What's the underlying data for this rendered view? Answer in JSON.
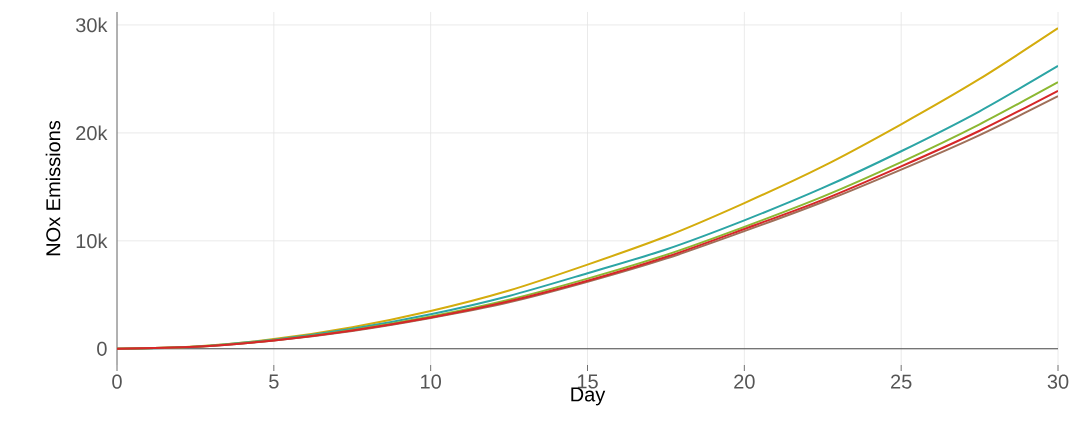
{
  "chart_data": {
    "type": "line",
    "xlabel": "Day",
    "ylabel": "NOx Emissions",
    "x": [
      0,
      2.5,
      5,
      7.5,
      10,
      12.5,
      15,
      17.5,
      20,
      22.5,
      25,
      27.5,
      30
    ],
    "series": [
      {
        "color": "#d4ac0d",
        "values": [
          0,
          220,
          900,
          2000,
          3500,
          5400,
          7800,
          10400,
          13500,
          16900,
          20800,
          25000,
          29700
        ]
      },
      {
        "color": "#2ca5a5",
        "values": [
          0,
          200,
          850,
          1850,
          3200,
          4900,
          7000,
          9200,
          11900,
          14900,
          18300,
          22000,
          26200
        ]
      },
      {
        "color": "#8cb832",
        "values": [
          0,
          190,
          800,
          1750,
          3000,
          4550,
          6500,
          8700,
          11300,
          14100,
          17300,
          20800,
          24700
        ]
      },
      {
        "color": "#a0705a",
        "values": [
          0,
          180,
          760,
          1650,
          2850,
          4300,
          6200,
          8350,
          10900,
          13600,
          16600,
          19800,
          23400
        ]
      },
      {
        "color": "#d62728",
        "values": [
          0,
          185,
          780,
          1700,
          2900,
          4400,
          6300,
          8500,
          11100,
          13800,
          16900,
          20200,
          23900
        ]
      }
    ],
    "xlim": [
      0,
      30
    ],
    "ylim": [
      -1500,
      31200
    ],
    "xticks": [
      0,
      5,
      10,
      15,
      20,
      25,
      30
    ],
    "yticks": [
      0,
      {
        "value": 10000,
        "label": "10k"
      },
      {
        "value": 20000,
        "label": "20k"
      },
      {
        "value": 30000,
        "label": "30k"
      }
    ],
    "grid": true,
    "legend": false,
    "marker": "none",
    "line_style": "solid"
  }
}
